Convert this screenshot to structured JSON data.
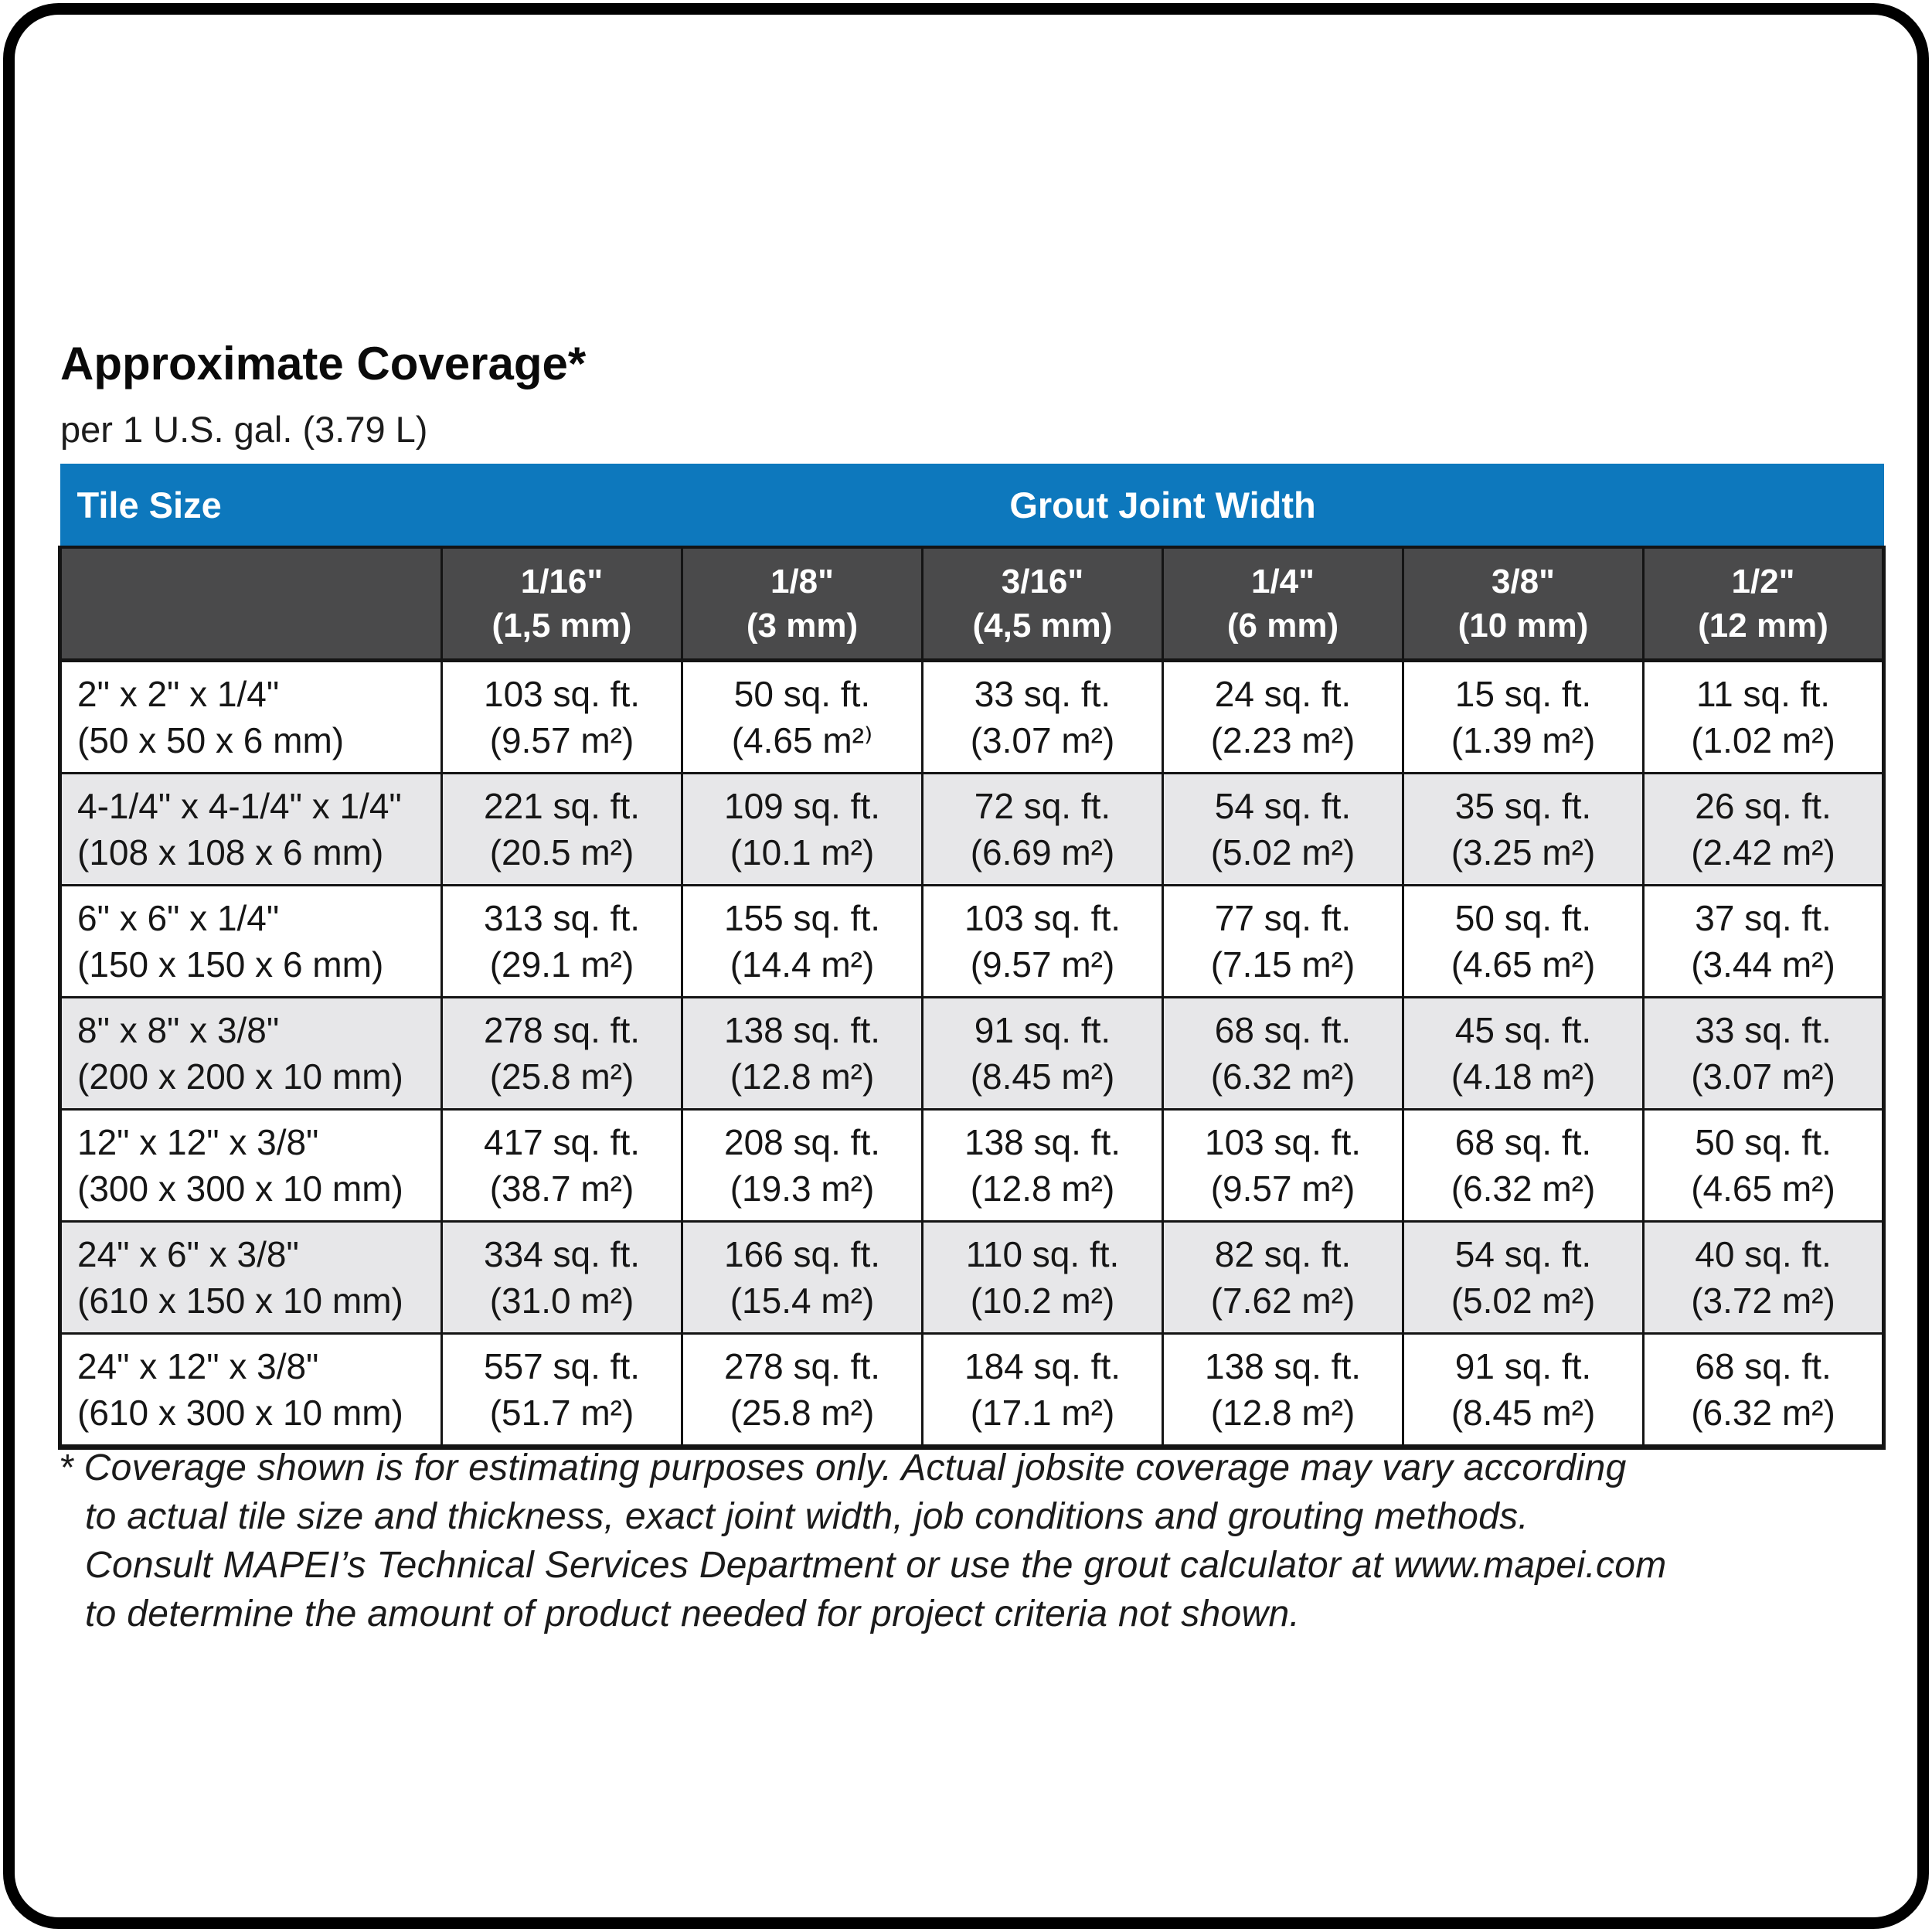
{
  "page": {
    "title": "Approximate Coverage*",
    "subtitle": "per 1 U.S. gal. (3.79 L)"
  },
  "colors": {
    "header_blue": "#0d78bd",
    "subheader_gray": "#4a4a4b",
    "alt_row_gray": "#e7e7e9",
    "border_black": "#141414"
  },
  "table": {
    "tile_size_header": "Tile Size",
    "grout_joint_width_header": "Grout Joint Width",
    "columns": [
      {
        "line1": "1/16\"",
        "line2": "(1,5 mm)"
      },
      {
        "line1": "1/8\"",
        "line2": "(3 mm)"
      },
      {
        "line1": "3/16\"",
        "line2": "(4,5 mm)"
      },
      {
        "line1": "1/4\"",
        "line2": "(6 mm)"
      },
      {
        "line1": "3/8\"",
        "line2": "(10 mm)"
      },
      {
        "line1": "1/2\"",
        "line2": "(12 mm)"
      }
    ],
    "rows": [
      {
        "tile": {
          "line1": "2\" x 2\" x 1/4\"",
          "line2": "(50 x 50 x 6 mm)"
        },
        "cells": [
          {
            "line1": "103 sq. ft.",
            "line2": "(9.57 m²)"
          },
          {
            "line1": "50 sq. ft.",
            "line2": "(4.65 m²⁾"
          },
          {
            "line1": "33 sq. ft.",
            "line2": "(3.07 m²)"
          },
          {
            "line1": "24 sq. ft.",
            "line2": "(2.23 m²)"
          },
          {
            "line1": "15 sq. ft.",
            "line2": "(1.39 m²)"
          },
          {
            "line1": "11 sq. ft.",
            "line2": "(1.02 m²)"
          }
        ]
      },
      {
        "tile": {
          "line1": "4-1/4\" x 4-1/4\" x 1/4\"",
          "line2": "(108 x 108 x 6 mm)"
        },
        "cells": [
          {
            "line1": "221 sq. ft.",
            "line2": "(20.5 m²)"
          },
          {
            "line1": "109 sq. ft.",
            "line2": "(10.1 m²)"
          },
          {
            "line1": "72 sq. ft.",
            "line2": "(6.69 m²)"
          },
          {
            "line1": "54 sq. ft.",
            "line2": "(5.02 m²)"
          },
          {
            "line1": "35 sq. ft.",
            "line2": "(3.25 m²)"
          },
          {
            "line1": "26 sq. ft.",
            "line2": "(2.42 m²)"
          }
        ]
      },
      {
        "tile": {
          "line1": "6\" x 6\" x 1/4\"",
          "line2": "(150 x 150 x 6 mm)"
        },
        "cells": [
          {
            "line1": "313 sq. ft.",
            "line2": "(29.1 m²)"
          },
          {
            "line1": "155 sq. ft.",
            "line2": "(14.4 m²)"
          },
          {
            "line1": "103 sq. ft.",
            "line2": "(9.57 m²)"
          },
          {
            "line1": "77 sq. ft.",
            "line2": "(7.15 m²)"
          },
          {
            "line1": "50 sq. ft.",
            "line2": "(4.65 m²)"
          },
          {
            "line1": "37 sq. ft.",
            "line2": "(3.44 m²)"
          }
        ]
      },
      {
        "tile": {
          "line1": "8\" x 8\" x 3/8\"",
          "line2": "(200 x 200 x 10 mm)"
        },
        "cells": [
          {
            "line1": "278 sq. ft.",
            "line2": "(25.8 m²)"
          },
          {
            "line1": "138 sq. ft.",
            "line2": "(12.8 m²)"
          },
          {
            "line1": "91 sq. ft.",
            "line2": "(8.45 m²)"
          },
          {
            "line1": "68 sq. ft.",
            "line2": "(6.32 m²)"
          },
          {
            "line1": "45 sq. ft.",
            "line2": "(4.18 m²)"
          },
          {
            "line1": "33 sq. ft.",
            "line2": "(3.07 m²)"
          }
        ]
      },
      {
        "tile": {
          "line1": "12\" x 12\" x 3/8\"",
          "line2": "(300 x 300 x 10 mm)"
        },
        "cells": [
          {
            "line1": "417 sq. ft.",
            "line2": "(38.7 m²)"
          },
          {
            "line1": "208 sq. ft.",
            "line2": "(19.3 m²)"
          },
          {
            "line1": "138 sq. ft.",
            "line2": "(12.8 m²)"
          },
          {
            "line1": "103 sq. ft.",
            "line2": "(9.57 m²)"
          },
          {
            "line1": "68 sq. ft.",
            "line2": "(6.32 m²)"
          },
          {
            "line1": "50 sq. ft.",
            "line2": "(4.65 m²)"
          }
        ]
      },
      {
        "tile": {
          "line1": "24\" x 6\" x 3/8\"",
          "line2": "(610 x 150 x 10 mm)"
        },
        "cells": [
          {
            "line1": "334 sq. ft.",
            "line2": "(31.0 m²)"
          },
          {
            "line1": "166 sq. ft.",
            "line2": "(15.4 m²)"
          },
          {
            "line1": "110 sq. ft.",
            "line2": "(10.2 m²)"
          },
          {
            "line1": "82 sq. ft.",
            "line2": "(7.62 m²)"
          },
          {
            "line1": "54 sq. ft.",
            "line2": "(5.02 m²)"
          },
          {
            "line1": "40 sq. ft.",
            "line2": "(3.72 m²)"
          }
        ]
      },
      {
        "tile": {
          "line1": "24\" x 12\" x 3/8\"",
          "line2": "(610 x 300 x 10 mm)"
        },
        "cells": [
          {
            "line1": "557 sq. ft.",
            "line2": "(51.7 m²)"
          },
          {
            "line1": "278 sq. ft.",
            "line2": "(25.8 m²)"
          },
          {
            "line1": "184 sq. ft.",
            "line2": "(17.1 m²)"
          },
          {
            "line1": "138 sq. ft.",
            "line2": "(12.8 m²)"
          },
          {
            "line1": "91 sq. ft.",
            "line2": "(8.45 m²)"
          },
          {
            "line1": "68 sq. ft.",
            "line2": "(6.32 m²)"
          }
        ]
      }
    ]
  },
  "footnote": {
    "line1": "* Coverage shown is for estimating purposes only. Actual jobsite coverage may vary according",
    "line2": "to actual tile size and thickness, exact joint width, job conditions and grouting methods.",
    "line3": "Consult MAPEI’s Technical Services Department or use the grout calculator at www.mapei.com",
    "line4": "to determine the amount of product needed for project criteria not shown."
  }
}
